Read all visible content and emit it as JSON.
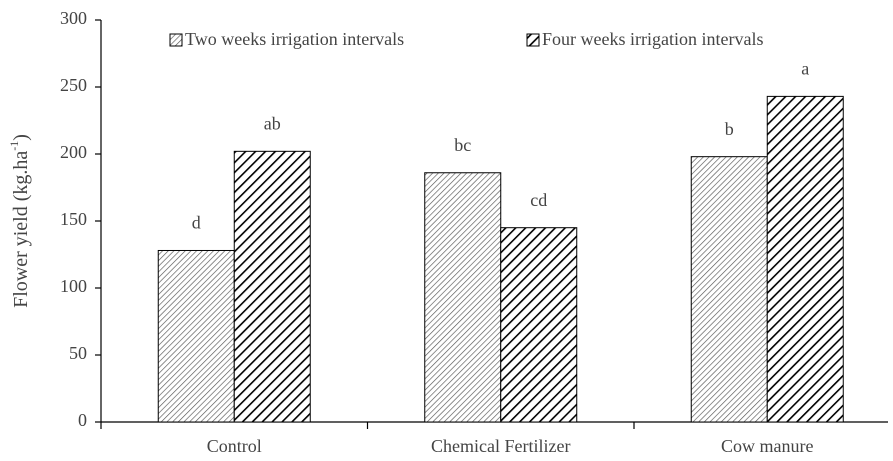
{
  "chart_data": {
    "type": "bar",
    "ylabel": [
      "Flower yield (kg.ha",
      "-1",
      ")"
    ],
    "categories": [
      "Control",
      "Chemical Fertilizer",
      "Cow manure"
    ],
    "series": [
      {
        "name": "Two weeks irrigation intervals",
        "color": "#555555",
        "values": [
          128,
          186,
          198
        ],
        "letters": [
          "d",
          "bc",
          "b"
        ]
      },
      {
        "name": "Four weeks irrigation intervals",
        "color": "#000000",
        "values": [
          202,
          145,
          243
        ],
        "letters": [
          "ab",
          "cd",
          "a"
        ]
      }
    ],
    "ylim": [
      0,
      300
    ],
    "yticks": [
      0,
      50,
      100,
      150,
      200,
      250,
      300
    ]
  }
}
